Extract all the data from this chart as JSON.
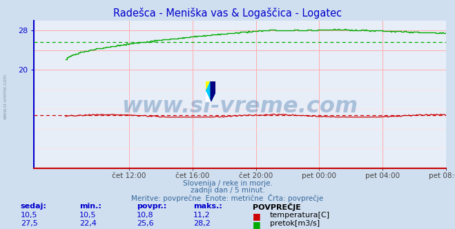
{
  "title": "Radešca - Meniška vas & Logaščica - Logatec",
  "title_color": "#0000cc",
  "bg_color": "#d0dff0",
  "plot_bg_color": "#e8eef8",
  "grid_color_v": "#ffaaaa",
  "grid_color_h": "#ffcccc",
  "watermark_text": "www.si-vreme.com",
  "watermark_color": "#4477aa",
  "watermark_alpha": 0.38,
  "subtitle1": "Slovenija / reke in morje.",
  "subtitle2": "zadnji dan / 5 minut.",
  "subtitle3": "Meritve: povprečne  Enote: metrične  Črta: povprečje",
  "subtitle_color": "#336699",
  "ylim": [
    0,
    30
  ],
  "yticks": [
    20,
    28
  ],
  "xlim_start": -24,
  "xlim_end": 288,
  "xtick_labels": [
    "čet 12:00",
    "čet 16:00",
    "čet 20:00",
    "pet 00:00",
    "pet 04:00",
    "pet 08:00"
  ],
  "xtick_positions": [
    48,
    96,
    144,
    192,
    240,
    288
  ],
  "temp_color": "#cc0000",
  "flow_color": "#00aa00",
  "temp_avg": 10.8,
  "flow_avg": 25.6,
  "temp_min": 10.5,
  "temp_max": 11.2,
  "temp_current": 10.5,
  "flow_min": 22.4,
  "flow_max": 28.2,
  "flow_current": 27.5,
  "legend_label_temp": "temperatura[C]",
  "legend_label_flow": "pretok[m3/s]",
  "table_headers": [
    "sedaj:",
    "min.:",
    "povpr.:",
    "maks.:"
  ],
  "table_color": "#0000cc",
  "left_axis_color": "#0000cc",
  "bottom_axis_color": "#cc0000"
}
